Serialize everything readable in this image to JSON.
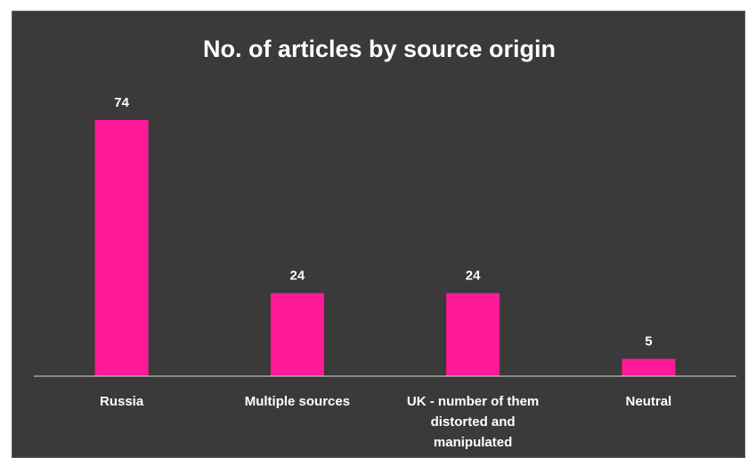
{
  "chart_data": {
    "type": "bar",
    "title": "No. of articles by source origin",
    "categories": [
      [
        "Russia"
      ],
      [
        "Multiple sources"
      ],
      [
        "UK - number of them",
        "distorted and",
        "manipulated"
      ],
      [
        "Neutral"
      ]
    ],
    "values": [
      74,
      24,
      24,
      5
    ],
    "data_labels": [
      "74",
      "24",
      "24",
      "5"
    ],
    "xlabel": "",
    "ylabel": "",
    "ylim": [
      0,
      80
    ],
    "grid": false,
    "legend": "none",
    "colors": {
      "bar": "#ff1a97",
      "background": "#3a3a3a",
      "text": "#ffffff",
      "axis": "#d9d9d9"
    }
  }
}
